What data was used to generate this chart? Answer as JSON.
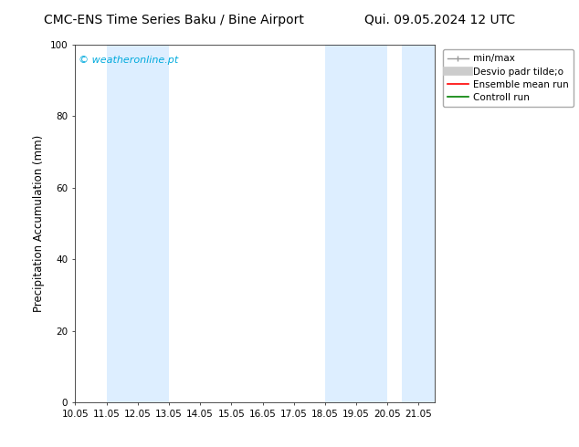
{
  "title_left": "CMC-ENS Time Series Baku / Bine Airport",
  "title_right": "Qui. 09.05.2024 12 UTC",
  "ylabel": "Precipitation Accumulation (mm)",
  "xlabel": "",
  "ylim": [
    0,
    100
  ],
  "xlim": [
    10.05,
    21.55
  ],
  "xticks": [
    10.05,
    11.05,
    12.05,
    13.05,
    14.05,
    15.05,
    16.05,
    17.05,
    18.05,
    19.05,
    20.05,
    21.05
  ],
  "yticks": [
    0,
    20,
    40,
    60,
    80,
    100
  ],
  "shaded_bands": [
    [
      11.05,
      12.05
    ],
    [
      12.05,
      13.05
    ],
    [
      18.05,
      19.05
    ],
    [
      19.05,
      20.05
    ],
    [
      20.5,
      21.55
    ]
  ],
  "shade_color": "#ddeeff",
  "watermark_text": "© weatheronline.pt",
  "watermark_color": "#00aadd",
  "legend_labels": [
    "min/max",
    "Desvio padr tilde;o",
    "Ensemble mean run",
    "Controll run"
  ],
  "bg_color": "#ffffff",
  "title_fontsize": 10,
  "tick_fontsize": 7.5,
  "ylabel_fontsize": 8.5,
  "legend_fontsize": 7.5
}
